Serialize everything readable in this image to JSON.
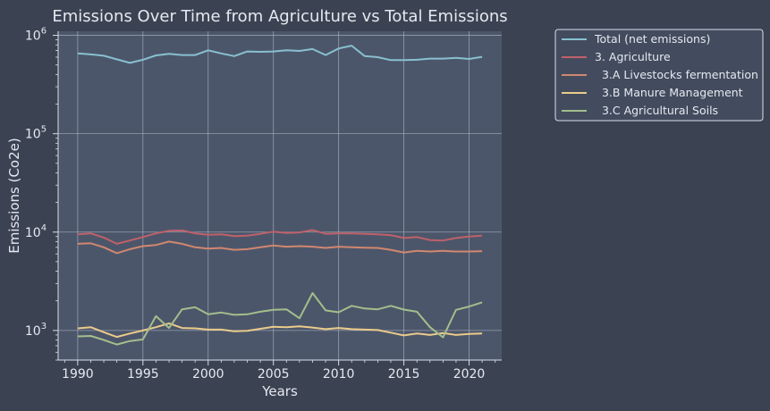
{
  "chart_data": {
    "type": "line",
    "title": "Emissions Over Time from Agriculture vs Total Emissions",
    "xlabel": "Years",
    "ylabel": "Emissions (Co2e)",
    "yscale": "log",
    "xlim": [
      1988.5,
      2022.5
    ],
    "ylim": [
      500,
      1100000
    ],
    "xticks": [
      1990,
      1995,
      2000,
      2005,
      2010,
      2015,
      2020
    ],
    "yticks": [
      {
        "value": 1000,
        "base": "10",
        "exp": "3"
      },
      {
        "value": 10000,
        "base": "10",
        "exp": "4"
      },
      {
        "value": 100000,
        "base": "10",
        "exp": "5"
      },
      {
        "value": 1000000,
        "base": "10",
        "exp": "6"
      }
    ],
    "grid": true,
    "legend_position": "outside-right",
    "x": [
      1990,
      1991,
      1992,
      1993,
      1994,
      1995,
      1996,
      1997,
      1998,
      1999,
      2000,
      2001,
      2002,
      2003,
      2004,
      2005,
      2006,
      2007,
      2008,
      2009,
      2010,
      2011,
      2012,
      2013,
      2014,
      2015,
      2016,
      2017,
      2018,
      2019,
      2020,
      2021
    ],
    "series": [
      {
        "name": "Total (net emissions)",
        "color": "#88c0d0",
        "values": [
          655000,
          640000,
          620000,
          570000,
          525000,
          565000,
          625000,
          650000,
          630000,
          630000,
          705000,
          655000,
          615000,
          685000,
          680000,
          685000,
          705000,
          695000,
          725000,
          630000,
          735000,
          785000,
          615000,
          600000,
          560000,
          560000,
          565000,
          580000,
          580000,
          590000,
          575000,
          605000
        ]
      },
      {
        "name": "3. Agriculture",
        "color": "#bf616a",
        "values": [
          9500,
          9700,
          8800,
          7600,
          8200,
          8900,
          9700,
          10300,
          10400,
          9700,
          9400,
          9500,
          9100,
          9200,
          9600,
          10100,
          9800,
          9900,
          10500,
          9600,
          9700,
          9700,
          9600,
          9500,
          9300,
          8700,
          8900,
          8300,
          8200,
          8700,
          9000,
          9200
        ]
      },
      {
        "name": "3.A Livestocks fermentation",
        "color": "#d08770",
        "values": [
          7600,
          7700,
          7000,
          6100,
          6700,
          7200,
          7400,
          8000,
          7600,
          7000,
          6800,
          6900,
          6600,
          6700,
          7000,
          7300,
          7100,
          7200,
          7100,
          6900,
          7100,
          7000,
          6950,
          6900,
          6600,
          6200,
          6450,
          6350,
          6450,
          6350,
          6350,
          6400
        ]
      },
      {
        "name": "3.B Manure Management",
        "color": "#ebcb8b",
        "values": [
          1050,
          1080,
          960,
          860,
          930,
          1000,
          1080,
          1180,
          1060,
          1050,
          1020,
          1020,
          980,
          990,
          1040,
          1090,
          1080,
          1100,
          1070,
          1030,
          1060,
          1030,
          1020,
          1010,
          950,
          890,
          930,
          900,
          940,
          900,
          920,
          930
        ]
      },
      {
        "name": "3.C Agricultural Soils",
        "color": "#a3be8c",
        "values": [
          870,
          880,
          800,
          720,
          780,
          810,
          1400,
          1060,
          1640,
          1720,
          1460,
          1520,
          1440,
          1460,
          1550,
          1620,
          1640,
          1330,
          2400,
          1600,
          1530,
          1780,
          1670,
          1640,
          1780,
          1630,
          1550,
          1080,
          850,
          1620,
          1750,
          1930
        ]
      }
    ]
  }
}
